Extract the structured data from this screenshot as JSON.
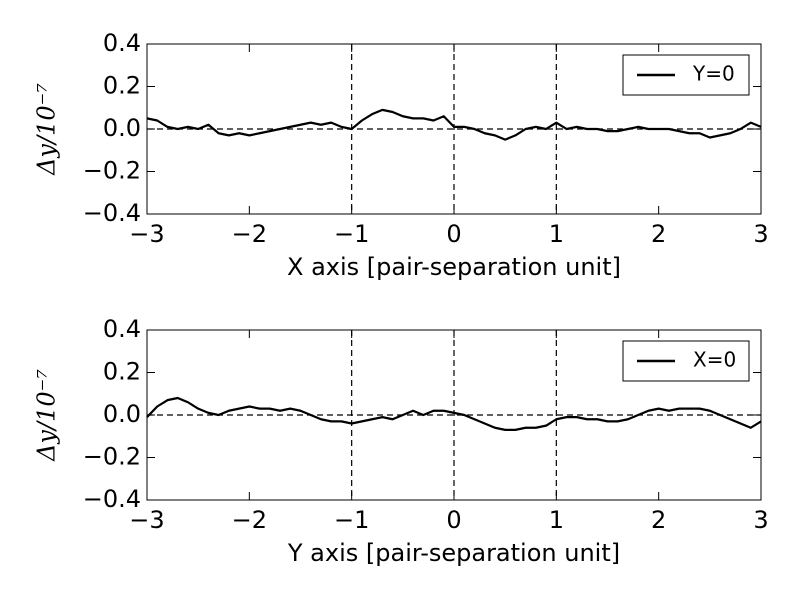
{
  "chart_data": [
    {
      "type": "line",
      "xlabel": "X axis [pair-separation unit]",
      "ylabel": "Δy/10⁻⁷",
      "x": [
        -3.0,
        -2.9,
        -2.8,
        -2.7,
        -2.6,
        -2.5,
        -2.4,
        -2.3,
        -2.2,
        -2.1,
        -2.0,
        -1.9,
        -1.8,
        -1.7,
        -1.6,
        -1.5,
        -1.4,
        -1.3,
        -1.2,
        -1.1,
        -1.0,
        -0.9,
        -0.8,
        -0.7,
        -0.6,
        -0.5,
        -0.4,
        -0.3,
        -0.2,
        -0.1,
        0.0,
        0.1,
        0.2,
        0.3,
        0.4,
        0.5,
        0.6,
        0.7,
        0.8,
        0.9,
        1.0,
        1.1,
        1.2,
        1.3,
        1.4,
        1.5,
        1.6,
        1.7,
        1.8,
        1.9,
        2.0,
        2.1,
        2.2,
        2.3,
        2.4,
        2.5,
        2.6,
        2.7,
        2.8,
        2.9,
        3.0
      ],
      "series": [
        {
          "name": "Y=0",
          "color": "#000000",
          "values": [
            0.05,
            0.04,
            0.01,
            0.0,
            0.01,
            0.0,
            0.02,
            -0.02,
            -0.03,
            -0.02,
            -0.03,
            -0.02,
            -0.01,
            0.0,
            0.01,
            0.02,
            0.03,
            0.02,
            0.03,
            0.01,
            0.0,
            0.04,
            0.07,
            0.09,
            0.08,
            0.06,
            0.05,
            0.05,
            0.04,
            0.06,
            0.01,
            0.01,
            0.0,
            -0.02,
            -0.03,
            -0.05,
            -0.03,
            0.0,
            0.01,
            0.0,
            0.03,
            0.0,
            0.01,
            0.0,
            0.0,
            -0.01,
            -0.01,
            0.0,
            0.01,
            0.0,
            0.0,
            0.0,
            -0.01,
            -0.02,
            -0.02,
            -0.04,
            -0.03,
            -0.02,
            0.0,
            0.03,
            0.01
          ]
        }
      ],
      "xlim": [
        -3,
        3
      ],
      "xticks": [
        {
          "value": -3,
          "label": "−3"
        },
        {
          "value": -2,
          "label": "−2"
        },
        {
          "value": -1,
          "label": "−1"
        },
        0,
        1,
        2,
        3
      ],
      "ylim": [
        -0.4,
        0.4
      ],
      "yticks": [
        {
          "value": -0.4,
          "label": "−0.4"
        },
        {
          "value": -0.2,
          "label": "−0.2"
        },
        {
          "value": 0,
          "label": "0.0"
        },
        0.2,
        0.4
      ],
      "vlines": [
        -1,
        0,
        1
      ],
      "hlines": [
        0
      ],
      "legend": "upper right"
    },
    {
      "type": "line",
      "xlabel": "Y axis [pair-separation unit]",
      "ylabel": "Δy/10⁻⁷",
      "x": [
        -3.0,
        -2.9,
        -2.8,
        -2.7,
        -2.6,
        -2.5,
        -2.4,
        -2.3,
        -2.2,
        -2.1,
        -2.0,
        -1.9,
        -1.8,
        -1.7,
        -1.6,
        -1.5,
        -1.4,
        -1.3,
        -1.2,
        -1.1,
        -1.0,
        -0.9,
        -0.8,
        -0.7,
        -0.6,
        -0.5,
        -0.4,
        -0.3,
        -0.2,
        -0.1,
        0.0,
        0.1,
        0.2,
        0.3,
        0.4,
        0.5,
        0.6,
        0.7,
        0.8,
        0.9,
        1.0,
        1.1,
        1.2,
        1.3,
        1.4,
        1.5,
        1.6,
        1.7,
        1.8,
        1.9,
        2.0,
        2.1,
        2.2,
        2.3,
        2.4,
        2.5,
        2.6,
        2.7,
        2.8,
        2.9,
        3.0
      ],
      "series": [
        {
          "name": "X=0",
          "color": "#000000",
          "values": [
            -0.01,
            0.04,
            0.07,
            0.08,
            0.06,
            0.03,
            0.01,
            0.0,
            0.02,
            0.03,
            0.04,
            0.03,
            0.03,
            0.02,
            0.03,
            0.02,
            0.0,
            -0.02,
            -0.03,
            -0.03,
            -0.04,
            -0.03,
            -0.02,
            -0.01,
            -0.02,
            0.0,
            0.02,
            0.0,
            0.02,
            0.02,
            0.01,
            0.0,
            -0.02,
            -0.04,
            -0.06,
            -0.07,
            -0.07,
            -0.06,
            -0.06,
            -0.05,
            -0.02,
            -0.01,
            -0.01,
            -0.02,
            -0.02,
            -0.03,
            -0.03,
            -0.02,
            0.0,
            0.02,
            0.03,
            0.02,
            0.03,
            0.03,
            0.03,
            0.02,
            0.0,
            -0.02,
            -0.04,
            -0.06,
            -0.03
          ]
        }
      ],
      "xlim": [
        -3,
        3
      ],
      "xticks": [
        {
          "value": -3,
          "label": "−3"
        },
        {
          "value": -2,
          "label": "−2"
        },
        {
          "value": -1,
          "label": "−1"
        },
        0,
        1,
        2,
        3
      ],
      "ylim": [
        -0.4,
        0.4
      ],
      "yticks": [
        {
          "value": -0.4,
          "label": "−0.4"
        },
        {
          "value": -0.2,
          "label": "−0.2"
        },
        {
          "value": 0,
          "label": "0.0"
        },
        0.2,
        0.4
      ],
      "vlines": [
        -1,
        0,
        1
      ],
      "hlines": [
        0
      ],
      "legend": "upper right"
    }
  ]
}
